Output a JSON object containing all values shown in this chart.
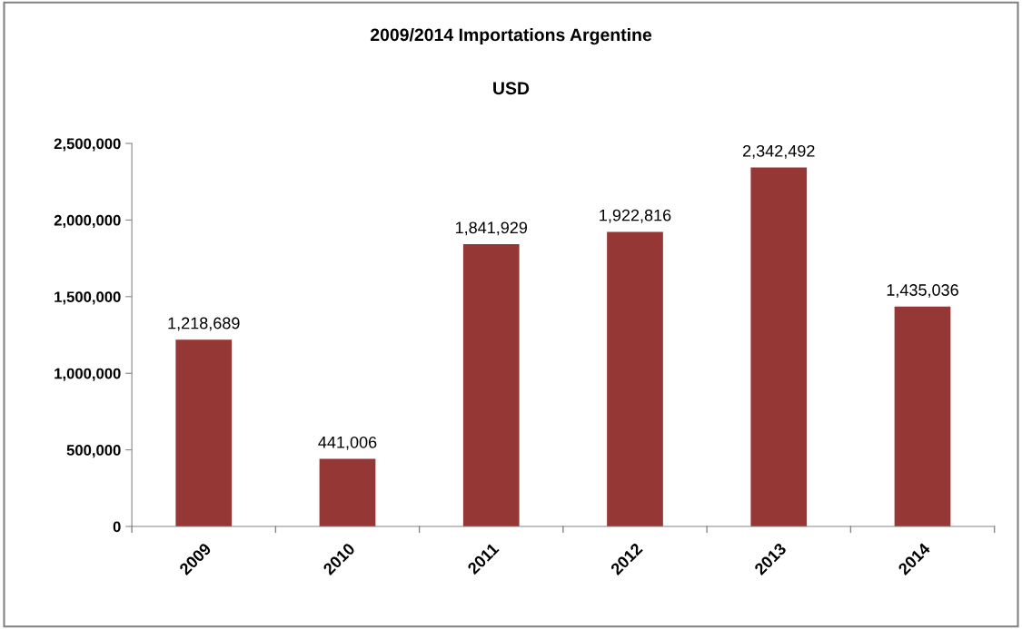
{
  "chart_data": {
    "type": "bar",
    "title": "2009/2014 Importations Argentine",
    "subtitle": "USD",
    "categories": [
      "2009",
      "2010",
      "2011",
      "2012",
      "2013",
      "2014"
    ],
    "values": [
      1218689,
      441006,
      1841929,
      1922816,
      2342492,
      1435036
    ],
    "color": "#953735",
    "ylim": [
      0,
      2500000
    ],
    "yticks": [
      0,
      {
        "value": 500000,
        "label": "500,000"
      },
      {
        "value": 1000000,
        "label": "1,000,000"
      },
      {
        "value": 1500000,
        "label": "1,500,000"
      },
      {
        "value": 2000000,
        "label": "2,000,000"
      },
      {
        "value": 2500000,
        "label": "2,500,000"
      }
    ],
    "value_labels": [
      "1,218,689",
      "441,006",
      "1,841,929",
      "1,922,816",
      "2,342,492",
      "1,435,036"
    ],
    "grid": false
  }
}
